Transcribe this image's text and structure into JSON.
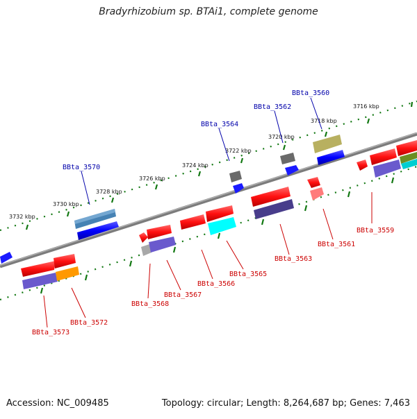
{
  "title": "Bradyrhizobium sp. BTAi1, complete genome",
  "accession": "Accession: NC_009485",
  "summary": "Topology: circular; Length: 8,264,687 bp; Genes: 7,463",
  "colors": {
    "forward_label": "#0000aa",
    "reverse_label": "#cc0000",
    "backbone": "#888888",
    "ruler": "#117711"
  },
  "kbp_labels": [
    "3716 kbp",
    "3718 kbp",
    "3720 kbp",
    "3722 kbp",
    "3724 kbp",
    "3726 kbp",
    "3728 kbp",
    "3730 kbp",
    "3732 kbp"
  ],
  "forward_gene_labels": [
    "BBta_3560",
    "BBta_3562",
    "BBta_3564",
    "BBta_3570"
  ],
  "reverse_gene_labels": [
    "BBta_3559",
    "BBta_3561",
    "BBta_3563",
    "BBta_3565",
    "BBta_3566",
    "BBta_3567",
    "BBta_3568",
    "BBta_3572",
    "BBta_3573"
  ]
}
